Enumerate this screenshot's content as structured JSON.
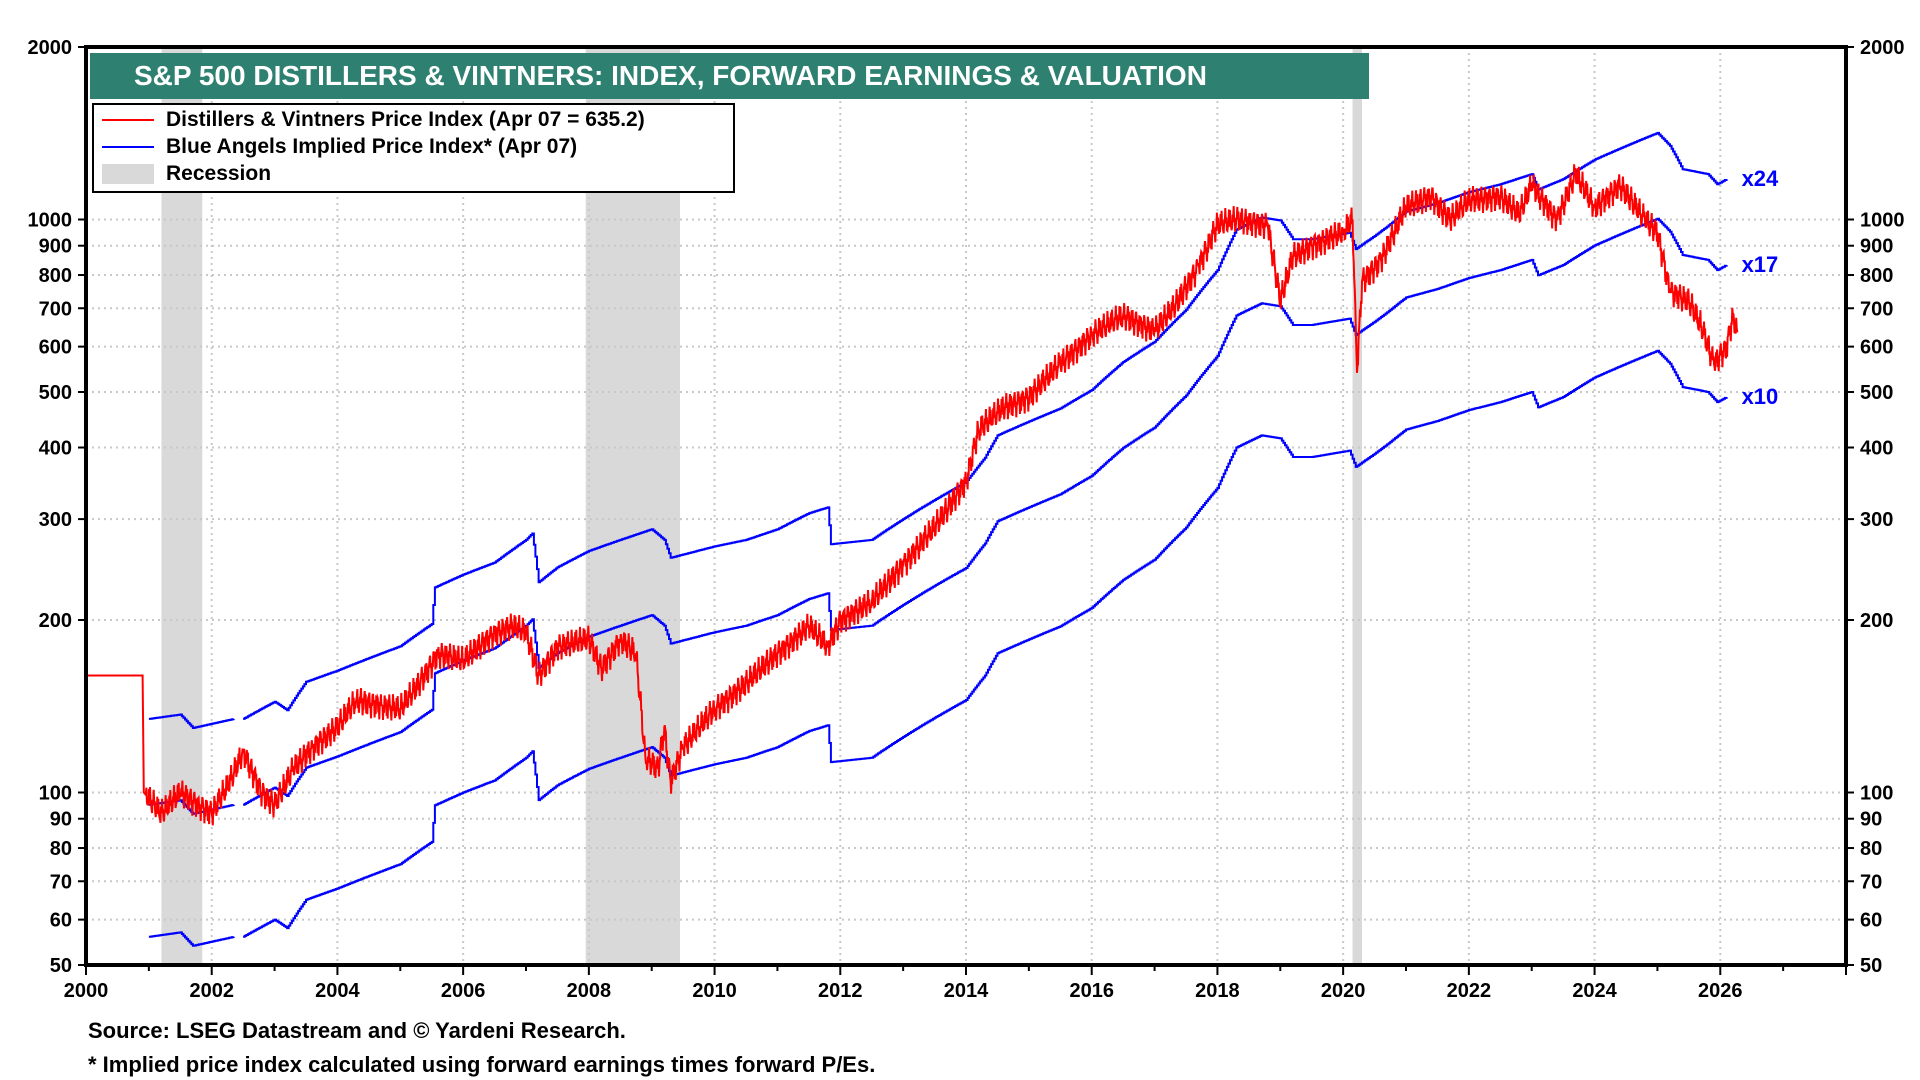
{
  "chart_data": {
    "type": "line",
    "title": "S&P 500 DISTILLERS & VINTNERS: INDEX, FORWARD EARNINGS & VALUATION",
    "yscale": "log",
    "ylim": [
      50,
      2000
    ],
    "xlim": [
      2000,
      2028
    ],
    "x_ticks": [
      "2000",
      "2002",
      "2004",
      "2006",
      "2008",
      "2010",
      "2012",
      "2014",
      "2016",
      "2018",
      "2020",
      "2022",
      "2024",
      "2026"
    ],
    "y_ticks": [
      50,
      60,
      70,
      80,
      90,
      100,
      200,
      300,
      400,
      500,
      600,
      700,
      800,
      900,
      1000,
      2000
    ],
    "grid": true,
    "legend_position": "top-left",
    "legend": [
      {
        "label": "Distillers & Vintners Price Index (Apr 07 = 635.2)",
        "color": "#ff0000"
      },
      {
        "label": "Blue Angels Implied Price Index* (Apr 07)",
        "color": "#0000ff"
      },
      {
        "label": "Recession",
        "color": "#d9d9d9"
      }
    ],
    "recessions": [
      [
        2001.2,
        2001.85
      ],
      [
        2007.95,
        2009.45
      ],
      [
        2020.15,
        2020.3
      ]
    ],
    "price_index": {
      "name": "Distillers & Vintners Price Index",
      "color": "#ff0000",
      "points": [
        [
          2000,
          160
        ],
        [
          2000.9,
          160
        ],
        [
          2000.92,
          100
        ],
        [
          2001.2,
          92
        ],
        [
          2001.5,
          100
        ],
        [
          2001.8,
          95
        ],
        [
          2002,
          92
        ],
        [
          2002.3,
          105
        ],
        [
          2002.5,
          118
        ],
        [
          2002.8,
          100
        ],
        [
          2003,
          95
        ],
        [
          2003.3,
          110
        ],
        [
          2003.6,
          120
        ],
        [
          2004,
          130
        ],
        [
          2004.3,
          145
        ],
        [
          2004.7,
          142
        ],
        [
          2005,
          140
        ],
        [
          2005.3,
          155
        ],
        [
          2005.6,
          175
        ],
        [
          2006,
          170
        ],
        [
          2006.5,
          190
        ],
        [
          2006.8,
          195
        ],
        [
          2007,
          190
        ],
        [
          2007.2,
          160
        ],
        [
          2007.5,
          180
        ],
        [
          2008,
          185
        ],
        [
          2008.2,
          165
        ],
        [
          2008.5,
          185
        ],
        [
          2008.75,
          175
        ],
        [
          2008.9,
          115
        ],
        [
          2009.1,
          110
        ],
        [
          2009.2,
          130
        ],
        [
          2009.3,
          105
        ],
        [
          2009.5,
          120
        ],
        [
          2010,
          140
        ],
        [
          2010.5,
          155
        ],
        [
          2011,
          175
        ],
        [
          2011.5,
          195
        ],
        [
          2011.8,
          180
        ],
        [
          2012,
          200
        ],
        [
          2012.5,
          215
        ],
        [
          2013,
          250
        ],
        [
          2013.5,
          290
        ],
        [
          2014,
          350
        ],
        [
          2014.2,
          430
        ],
        [
          2014.6,
          470
        ],
        [
          2015,
          490
        ],
        [
          2015.5,
          560
        ],
        [
          2016,
          630
        ],
        [
          2016.5,
          680
        ],
        [
          2017,
          640
        ],
        [
          2017.3,
          700
        ],
        [
          2017.7,
          830
        ],
        [
          2018,
          980
        ],
        [
          2018.3,
          1000
        ],
        [
          2018.8,
          980
        ],
        [
          2019,
          720
        ],
        [
          2019.2,
          860
        ],
        [
          2019.5,
          900
        ],
        [
          2020,
          950
        ],
        [
          2020.15,
          1000
        ],
        [
          2020.22,
          540
        ],
        [
          2020.3,
          780
        ],
        [
          2020.6,
          850
        ],
        [
          2021,
          1050
        ],
        [
          2021.4,
          1100
        ],
        [
          2021.7,
          1000
        ],
        [
          2022,
          1080
        ],
        [
          2022.5,
          1100
        ],
        [
          2022.8,
          1020
        ],
        [
          2023,
          1150
        ],
        [
          2023.4,
          1000
        ],
        [
          2023.7,
          1200
        ],
        [
          2024,
          1050
        ],
        [
          2024.4,
          1150
        ],
        [
          2024.8,
          1000
        ],
        [
          2025,
          950
        ],
        [
          2025.2,
          750
        ],
        [
          2025.5,
          720
        ],
        [
          2025.7,
          650
        ],
        [
          2025.9,
          560
        ],
        [
          2026.1,
          600
        ],
        [
          2026.2,
          680
        ],
        [
          2026.27,
          635.2
        ]
      ]
    },
    "implied_base_x10": {
      "name": "Blue Angels Implied Price Index (forward earnings x10)",
      "color": "#0000ff",
      "segments": [
        [
          [
            2001,
            56
          ],
          [
            2001.5,
            57
          ],
          [
            2001.7,
            54
          ],
          [
            2002.35,
            56
          ]
        ],
        [
          [
            2002.5,
            56
          ],
          [
            2003,
            60
          ],
          [
            2003.2,
            58
          ],
          [
            2003.5,
            65
          ],
          [
            2004,
            68
          ],
          [
            2005,
            75
          ],
          [
            2005.5,
            82
          ],
          [
            2005.55,
            95
          ],
          [
            2006,
            100
          ],
          [
            2006.5,
            105
          ],
          [
            2007,
            115
          ],
          [
            2007.1,
            118
          ],
          [
            2007.2,
            97
          ],
          [
            2007.5,
            103
          ],
          [
            2008,
            110
          ],
          [
            2008.5,
            115
          ],
          [
            2009,
            120
          ],
          [
            2009.2,
            115
          ],
          [
            2009.3,
            107
          ],
          [
            2010,
            112
          ],
          [
            2010.5,
            115
          ],
          [
            2011,
            120
          ],
          [
            2011.5,
            128
          ],
          [
            2011.8,
            131
          ],
          [
            2011.85,
            113
          ],
          [
            2012.5,
            115
          ],
          [
            2013,
            125
          ],
          [
            2013.5,
            135
          ],
          [
            2014,
            145
          ],
          [
            2014.3,
            160
          ],
          [
            2014.5,
            175
          ],
          [
            2015,
            185
          ],
          [
            2015.5,
            195
          ],
          [
            2016,
            210
          ],
          [
            2016.5,
            235
          ],
          [
            2017,
            255
          ],
          [
            2017.5,
            290
          ],
          [
            2018,
            340
          ],
          [
            2018.3,
            400
          ],
          [
            2018.7,
            420
          ],
          [
            2019,
            415
          ],
          [
            2019.2,
            385
          ],
          [
            2019.5,
            385
          ],
          [
            2020.1,
            395
          ],
          [
            2020.2,
            370
          ],
          [
            2020.5,
            390
          ],
          [
            2020.7,
            405
          ],
          [
            2021,
            430
          ],
          [
            2021.5,
            445
          ],
          [
            2022,
            465
          ],
          [
            2022.5,
            480
          ],
          [
            2023,
            500
          ],
          [
            2023.1,
            470
          ],
          [
            2023.5,
            490
          ],
          [
            2024,
            530
          ],
          [
            2024.5,
            560
          ],
          [
            2025,
            590
          ],
          [
            2025.2,
            560
          ],
          [
            2025.4,
            510
          ],
          [
            2025.8,
            500
          ],
          [
            2025.95,
            480
          ],
          [
            2026.1,
            490
          ]
        ]
      ]
    },
    "multiples": [
      {
        "label": "x24",
        "factor": 2.4
      },
      {
        "label": "x17",
        "factor": 1.7
      },
      {
        "label": "x10",
        "factor": 1.0
      }
    ]
  },
  "footer": {
    "source": "Source: LSEG Datastream and © Yardeni Research.",
    "note": "* Implied price index calculated using forward earnings times forward P/Es."
  }
}
